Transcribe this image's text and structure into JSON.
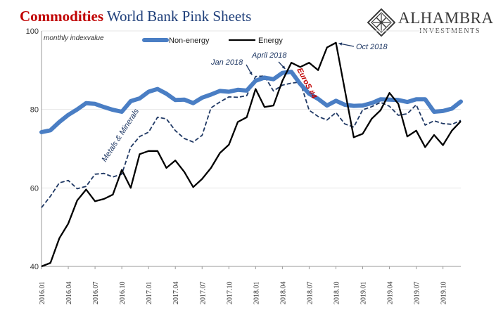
{
  "header": {
    "title_red": "Commodities",
    "title_blue": "World Bank Pink Sheets"
  },
  "brand": {
    "name": "ALHAMBRA",
    "sub": "INVESTMENTS"
  },
  "colors": {
    "non_energy": "#4a7ec4",
    "energy": "#000000",
    "metals": "#1f3864",
    "annotation_red": "#c00000"
  },
  "chart_data": {
    "type": "line",
    "ylabel": "monthly indexvalue",
    "ylim": [
      40,
      100
    ],
    "yticks": [
      40,
      60,
      80,
      100
    ],
    "x": [
      "2016.01",
      "2016.02",
      "2016.03",
      "2016.04",
      "2016.05",
      "2016.06",
      "2016.07",
      "2016.08",
      "2016.09",
      "2016.10",
      "2016.11",
      "2016.12",
      "2017.01",
      "2017.02",
      "2017.03",
      "2017.04",
      "2017.05",
      "2017.06",
      "2017.07",
      "2017.08",
      "2017.09",
      "2017.10",
      "2017.11",
      "2017.12",
      "2018.01",
      "2018.02",
      "2018.03",
      "2018.04",
      "2018.05",
      "2018.06",
      "2018.07",
      "2018.08",
      "2018.09",
      "2018.10",
      "2018.11",
      "2018.12",
      "2019.01",
      "2019.02",
      "2019.03",
      "2019.04",
      "2019.05",
      "2019.06",
      "2019.07",
      "2019.08",
      "2019.09",
      "2019.10",
      "2019.11",
      "2019.12"
    ],
    "xtick_labels": [
      "2016.01",
      "2016.04",
      "2016.07",
      "2016.10",
      "2017.01",
      "2017.04",
      "2017.07",
      "2017.10",
      "2018.01",
      "2018.04",
      "2018.07",
      "2018.10",
      "2019.01",
      "2019.04",
      "2019.07",
      "2019.10"
    ],
    "legend_position": "top-center",
    "series": [
      {
        "name": "Non-energy",
        "style": "thick",
        "values": [
          74.2,
          74.7,
          76.8,
          78.6,
          80.0,
          81.6,
          81.4,
          80.6,
          79.9,
          79.4,
          82.1,
          82.8,
          84.5,
          85.2,
          84.0,
          82.4,
          82.5,
          81.6,
          83.0,
          83.8,
          84.7,
          84.5,
          85.0,
          84.8,
          87.3,
          88.1,
          87.7,
          89.3,
          89.6,
          86.5,
          84.0,
          82.7,
          81.0,
          82.2,
          81.2,
          80.9,
          81.0,
          81.6,
          82.6,
          82.5,
          82.4,
          81.9,
          82.6,
          82.6,
          79.4,
          79.6,
          80.2,
          82.0
        ]
      },
      {
        "name": "Energy",
        "style": "solid",
        "values": [
          40.0,
          40.9,
          47.2,
          50.9,
          56.8,
          59.6,
          56.6,
          57.2,
          58.3,
          64.6,
          60.0,
          68.6,
          69.4,
          69.4,
          65.1,
          67.0,
          64.1,
          60.2,
          62.3,
          65.1,
          68.9,
          71.0,
          76.8,
          78.0,
          85.2,
          80.6,
          81.0,
          87.3,
          91.9,
          90.8,
          91.9,
          90.0,
          95.8,
          97.0,
          85.0,
          72.9,
          73.8,
          77.6,
          79.8,
          84.2,
          81.4,
          73.1,
          74.6,
          70.4,
          73.5,
          70.9,
          74.6,
          77.0
        ]
      },
      {
        "name": "",
        "style": "dashed",
        "values": [
          55.0,
          57.9,
          61.3,
          61.9,
          59.8,
          60.4,
          63.5,
          63.7,
          62.8,
          63.5,
          70.4,
          73.1,
          74.2,
          78.0,
          77.6,
          74.6,
          72.6,
          71.7,
          73.4,
          80.4,
          81.9,
          83.2,
          83.1,
          83.5,
          88.4,
          88.5,
          84.7,
          86.2,
          86.7,
          87.0,
          79.8,
          78.2,
          77.3,
          79.2,
          76.3,
          75.5,
          79.9,
          80.7,
          81.8,
          80.8,
          78.5,
          78.9,
          81.2,
          76.0,
          77.1,
          76.4,
          76.2,
          77.2
        ]
      }
    ],
    "annotations": [
      {
        "text": "Jan 2018",
        "style": "italic"
      },
      {
        "text": "April 2018",
        "style": "italic"
      },
      {
        "text": "Oct 2018",
        "style": "italic"
      },
      {
        "text": "Metals & Minerals",
        "style": "italic-rotated"
      },
      {
        "text": "EuroS #4",
        "style": "italic-red-rotated"
      }
    ]
  }
}
